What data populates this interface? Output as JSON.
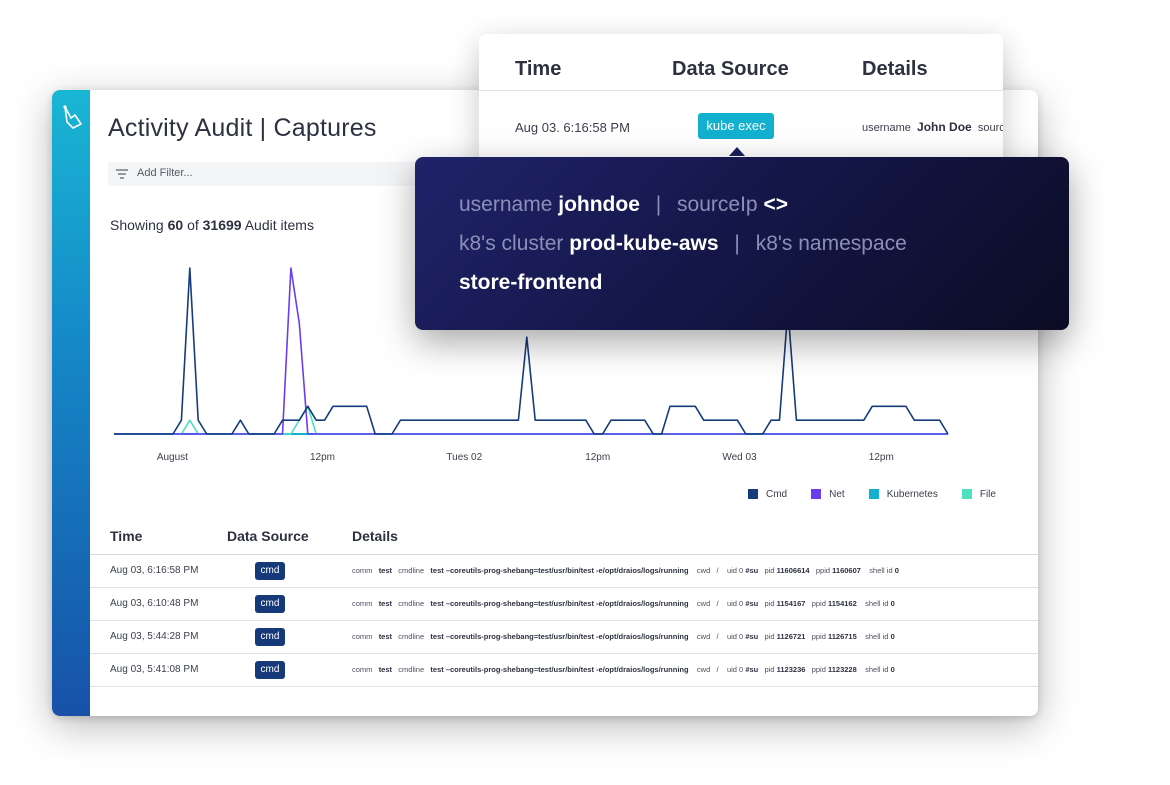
{
  "app": {
    "title": "Activity Audit  |  Captures",
    "logo_icon": "hand-pointer-icon"
  },
  "filter": {
    "placeholder": "Add Filter...",
    "icon": "filter-icon"
  },
  "summary": {
    "prefix": "Showing",
    "shown": "60",
    "of_label": "of",
    "total": "31699",
    "suffix": "Audit items"
  },
  "chart_data": {
    "type": "line",
    "x_tick_labels": [
      "August",
      "12pm",
      "Tues 02",
      "12pm",
      "Wed 03",
      "12pm"
    ],
    "x": [
      0,
      1,
      2,
      3,
      4,
      5,
      6,
      7,
      8,
      9,
      10,
      11,
      12,
      13,
      14,
      15,
      16,
      17,
      18,
      19,
      20,
      21,
      22,
      23,
      24,
      25,
      26,
      27,
      28,
      29,
      30,
      31,
      32,
      33,
      34,
      35,
      36,
      37,
      38,
      39,
      40,
      41,
      42,
      43,
      44,
      45,
      46,
      47,
      48,
      49,
      50,
      51,
      52,
      53,
      54,
      55,
      56,
      57,
      58,
      59,
      60,
      61,
      62,
      63,
      64,
      65,
      66,
      67,
      68,
      69,
      70,
      71,
      72,
      73,
      74,
      75,
      76,
      77,
      78,
      79,
      80,
      81,
      82,
      83,
      84,
      85,
      86,
      87,
      88,
      89,
      90,
      91,
      92,
      93,
      94,
      95,
      96,
      97,
      98,
      99
    ],
    "series": [
      {
        "name": "Cmd",
        "color": "#163c7c",
        "values": [
          0,
          0,
          0,
          0,
          0,
          0,
          0,
          0,
          1,
          12,
          1,
          0,
          0,
          0,
          0,
          1,
          0,
          0,
          0,
          0,
          1,
          1,
          1,
          2,
          1,
          1,
          2,
          2,
          2,
          2,
          2,
          0,
          0,
          0,
          1,
          1,
          1,
          1,
          1,
          1,
          1,
          1,
          1,
          1,
          1,
          1,
          1,
          1,
          1,
          7,
          1,
          1,
          1,
          1,
          1,
          1,
          1,
          0,
          0,
          1,
          1,
          1,
          1,
          1,
          0,
          0,
          2,
          2,
          2,
          2,
          1,
          1,
          1,
          1,
          1,
          0,
          0,
          0,
          1,
          1,
          9,
          1,
          1,
          1,
          1,
          1,
          1,
          1,
          1,
          1,
          2,
          2,
          2,
          2,
          2,
          1,
          1,
          1,
          1,
          0
        ]
      },
      {
        "name": "Net",
        "color": "#6a3df0",
        "values": [
          0,
          0,
          0,
          0,
          0,
          0,
          0,
          0,
          0,
          0,
          0,
          0,
          0,
          0,
          0,
          0,
          0,
          0,
          0,
          0,
          0,
          12,
          8,
          0,
          0,
          0,
          0,
          0,
          0,
          0,
          0,
          0,
          0,
          0,
          0,
          0,
          0,
          0,
          0,
          0,
          0,
          0,
          0,
          0,
          0,
          0,
          0,
          0,
          0,
          0,
          0,
          0,
          0,
          0,
          0,
          0,
          0,
          0,
          0,
          0,
          0,
          0,
          0,
          0,
          0,
          0,
          0,
          0,
          0,
          0,
          0,
          0,
          0,
          0,
          0,
          0,
          0,
          0,
          0,
          0,
          0,
          0,
          0,
          0,
          0,
          0,
          0,
          0,
          0,
          0,
          0,
          0,
          0,
          0,
          0,
          0,
          0,
          0,
          0,
          0
        ]
      },
      {
        "name": "Kubernetes",
        "color": "#12b1cf",
        "values": [
          0,
          0,
          0,
          0,
          0,
          0,
          0,
          0,
          0,
          0,
          0,
          0,
          0,
          0,
          0,
          0,
          0,
          0,
          0,
          0,
          0,
          0,
          0,
          0,
          0,
          0,
          0,
          0,
          0,
          0,
          0,
          0,
          0,
          0,
          0,
          0,
          0,
          0,
          0,
          0,
          0,
          0,
          0,
          0,
          0,
          0,
          0,
          0,
          0,
          0,
          0,
          0,
          0,
          0,
          0,
          0,
          0,
          0,
          0,
          0,
          0,
          0,
          0,
          0,
          0,
          0,
          0,
          0,
          0,
          0,
          0,
          0,
          0,
          0,
          0,
          0,
          0,
          0,
          0,
          0,
          0,
          0,
          0,
          0,
          0,
          0,
          0,
          0,
          0,
          0,
          0,
          0,
          0,
          0,
          0,
          0,
          0,
          0,
          0,
          0
        ]
      },
      {
        "name": "File",
        "color": "#4fe0c0",
        "values": [
          0,
          0,
          0,
          0,
          0,
          0,
          0,
          0,
          0,
          1,
          0,
          0,
          0,
          0,
          0,
          0,
          0,
          0,
          0,
          0,
          0,
          0,
          1,
          2,
          0,
          0,
          0,
          0,
          0,
          0,
          0,
          0,
          0,
          0,
          0,
          0,
          0,
          0,
          0,
          0,
          0,
          0,
          0,
          0,
          0,
          0,
          0,
          0,
          0,
          0,
          0,
          0,
          0,
          0,
          0,
          0,
          0,
          0,
          0,
          0,
          0,
          0,
          0,
          0,
          0,
          0,
          0,
          0,
          0,
          0,
          0,
          0,
          0,
          0,
          0,
          0,
          0,
          0,
          0,
          0,
          0,
          0,
          0,
          0,
          0,
          0,
          0,
          0,
          0,
          0,
          0,
          0,
          0,
          0,
          0,
          0,
          0,
          0,
          0,
          0
        ]
      }
    ],
    "legend_position": "bottom-right",
    "grid": false
  },
  "table": {
    "headers": {
      "time": "Time",
      "source": "Data Source",
      "details": "Details"
    },
    "rows": [
      {
        "time": "Aug 03, 6:16:58 PM",
        "source": "cmd",
        "pid": "11606614",
        "ppid": "1160607"
      },
      {
        "time": "Aug 03, 6:10:48 PM",
        "source": "cmd",
        "pid": "1154167",
        "ppid": "1154162"
      },
      {
        "time": "Aug 03, 5:44:28 PM",
        "source": "cmd",
        "pid": "1126721",
        "ppid": "1126715"
      },
      {
        "time": "Aug 03, 5:41:08 PM",
        "source": "cmd",
        "pid": "1123236",
        "ppid": "1123228"
      }
    ],
    "detail_labels": {
      "comm": "comm",
      "comm_val": "test",
      "cmdline": "cmdline",
      "cmdline_val": "test –coreutils-prog-shebang=test/usr/bin/test -e/opt/draios/logs/running",
      "cwd": "cwd",
      "cwd_val": "/",
      "uid": "uid 0",
      "uid_val": "#su",
      "pid": "pid",
      "ppid": "ppid",
      "shell": "shell id",
      "shell_val": "0"
    }
  },
  "back_card": {
    "headers": {
      "time": "Time",
      "source": "Data Source",
      "details": "Details"
    },
    "row": {
      "time": "Aug 03. 6:16:58 PM",
      "source": "kube exec",
      "details_label": "username",
      "details_value": "John Doe",
      "details_tail": "sourc"
    }
  },
  "tooltip": {
    "username_label": "username",
    "username_value": "johndoe",
    "sourceip_label": "sourceIp",
    "sourceip_value": "<>",
    "cluster_label": "k8's cluster",
    "cluster_value": "prod-kube-aws",
    "namespace_label": "k8's namespace",
    "namespace_value": "store-frontend",
    "separator": "|"
  }
}
